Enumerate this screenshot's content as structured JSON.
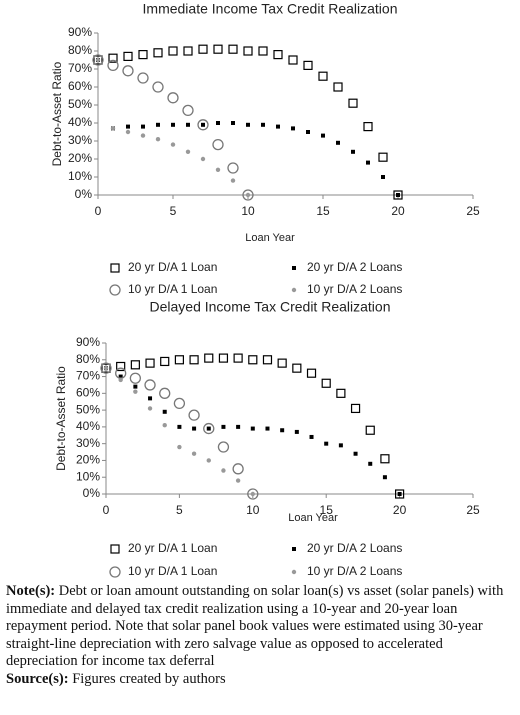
{
  "chart_data": [
    {
      "type": "scatter",
      "title": "Immediate Income Tax Credit Realization",
      "xlabel": "Loan Year",
      "ylabel": "Debt-to-Asset Ratio",
      "xlim": [
        0,
        25
      ],
      "xticks": [
        0,
        5,
        10,
        15,
        20,
        25
      ],
      "ylim": [
        0,
        90
      ],
      "yticks": [
        {
          "value": 0,
          "label": "0%"
        },
        {
          "value": 10,
          "label": "10%"
        },
        {
          "value": 20,
          "label": "20%"
        },
        {
          "value": 30,
          "label": "30%"
        },
        {
          "value": 40,
          "label": "40%"
        },
        {
          "value": 50,
          "label": "50%"
        },
        {
          "value": 60,
          "label": "60%"
        },
        {
          "value": 70,
          "label": "70%"
        },
        {
          "value": 80,
          "label": "80%"
        },
        {
          "value": 90,
          "label": "90%"
        }
      ],
      "series": [
        {
          "name": "20 yr D/A 1 Loan",
          "color": "#000000",
          "marker": "open-square",
          "x": [
            0,
            1,
            2,
            3,
            4,
            5,
            6,
            7,
            8,
            9,
            10,
            11,
            12,
            13,
            14,
            15,
            16,
            17,
            18,
            19,
            20
          ],
          "values": [
            75,
            76,
            77,
            78,
            79,
            80,
            80,
            81,
            81,
            81,
            80,
            80,
            78,
            75,
            72,
            66,
            60,
            51,
            38,
            21,
            0
          ]
        },
        {
          "name": "20 yr D/A 2 Loans",
          "color": "#000000",
          "marker": "small-square",
          "x": [
            0,
            1,
            2,
            3,
            4,
            5,
            6,
            7,
            8,
            9,
            10,
            11,
            12,
            13,
            14,
            15,
            16,
            17,
            18,
            19,
            20
          ],
          "values": [
            75,
            37,
            38,
            38,
            39,
            39,
            39,
            39,
            40,
            40,
            39,
            39,
            38,
            37,
            35,
            33,
            29,
            24,
            18,
            10,
            0
          ]
        },
        {
          "name": "10 yr D/A 1 Loan",
          "color": "#777777",
          "marker": "open-circle",
          "x": [
            0,
            1,
            2,
            3,
            4,
            5,
            6,
            7,
            8,
            9,
            10
          ],
          "values": [
            75,
            72,
            69,
            65,
            60,
            54,
            47,
            39,
            28,
            15,
            0
          ]
        },
        {
          "name": "10 yr D/A 2 Loans",
          "color": "#999999",
          "marker": "dot",
          "x": [
            0,
            1,
            2,
            3,
            4,
            5,
            6,
            7,
            8,
            9,
            10
          ],
          "values": [
            75,
            37,
            35,
            33,
            31,
            28,
            24,
            20,
            14,
            8,
            0
          ]
        }
      ]
    },
    {
      "type": "scatter",
      "title": "Delayed Income Tax Credit Realization",
      "xlabel": "Loan Year",
      "ylabel": "Debt-to-Asset Ratio",
      "xlim": [
        0,
        25
      ],
      "xticks": [
        0,
        5,
        10,
        15,
        20,
        25
      ],
      "ylim": [
        0,
        90
      ],
      "yticks": [
        {
          "value": 0,
          "label": "0%"
        },
        {
          "value": 10,
          "label": "10%"
        },
        {
          "value": 20,
          "label": "20%"
        },
        {
          "value": 30,
          "label": "30%"
        },
        {
          "value": 40,
          "label": "40%"
        },
        {
          "value": 50,
          "label": "50%"
        },
        {
          "value": 60,
          "label": "60%"
        },
        {
          "value": 70,
          "label": "70%"
        },
        {
          "value": 80,
          "label": "80%"
        },
        {
          "value": 90,
          "label": "90%"
        }
      ],
      "series": [
        {
          "name": "20 yr D/A 1 Loan",
          "color": "#000000",
          "marker": "open-square",
          "x": [
            0,
            1,
            2,
            3,
            4,
            5,
            6,
            7,
            8,
            9,
            10,
            11,
            12,
            13,
            14,
            15,
            16,
            17,
            18,
            19,
            20
          ],
          "values": [
            75,
            76,
            77,
            78,
            79,
            80,
            80,
            81,
            81,
            81,
            80,
            80,
            78,
            75,
            72,
            66,
            60,
            51,
            38,
            21,
            0
          ]
        },
        {
          "name": "20 yr D/A 2 Loans",
          "color": "#000000",
          "marker": "small-square",
          "x": [
            0,
            1,
            2,
            3,
            4,
            5,
            6,
            7,
            8,
            9,
            10,
            11,
            12,
            13,
            14,
            15,
            16,
            17,
            18,
            19,
            20
          ],
          "values": [
            75,
            70,
            64,
            57,
            49,
            40,
            39,
            39,
            40,
            40,
            39,
            39,
            38,
            37,
            34,
            30,
            29,
            24,
            18,
            10,
            0
          ]
        },
        {
          "name": "10 yr D/A 1 Loan",
          "color": "#777777",
          "marker": "open-circle",
          "x": [
            0,
            1,
            2,
            3,
            4,
            5,
            6,
            7,
            8,
            9,
            10
          ],
          "values": [
            75,
            72,
            69,
            65,
            60,
            54,
            47,
            39,
            28,
            15,
            0
          ]
        },
        {
          "name": "10 yr D/A 2 Loans",
          "color": "#999999",
          "marker": "dot",
          "x": [
            0,
            1,
            2,
            3,
            4,
            5,
            6,
            7,
            8,
            9,
            10
          ],
          "values": [
            75,
            68,
            61,
            51,
            41,
            28,
            24,
            20,
            14,
            8,
            0
          ]
        }
      ]
    }
  ],
  "note": {
    "label": "Note(s):",
    "text": "Debt or loan amount outstanding on solar loan(s) vs asset (solar panels) with immediate and delayed tax credit realization using a 10-year and 20-year loan repayment period. Note that solar panel book values were estimated using 30-year straight-line depreciation with zero salvage value as opposed to accelerated depreciation for income tax deferral"
  },
  "source": {
    "label": "Source(s):",
    "text": "Figures created by authors"
  }
}
